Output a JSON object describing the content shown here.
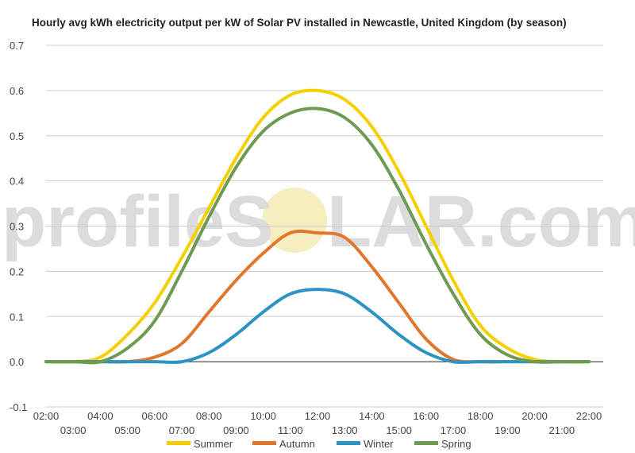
{
  "watermark": {
    "text_left": "profileS",
    "text_right": "LAR.com",
    "sun_color": "#f6eebf"
  },
  "chart_data": {
    "type": "line",
    "title": "Hourly avg kWh electricity output per kW of Solar PV installed in Newcastle, United Kingdom (by season)",
    "xlabel": "",
    "ylabel": "",
    "ylim": [
      -0.1,
      0.7
    ],
    "yticks": [
      "-0.1",
      "0.0",
      "0.1",
      "0.2",
      "0.3",
      "0.4",
      "0.5",
      "0.6",
      "0.7"
    ],
    "grid": true,
    "legend_position": "bottom",
    "x": [
      "02:00",
      "03:00",
      "04:00",
      "05:00",
      "06:00",
      "07:00",
      "08:00",
      "09:00",
      "10:00",
      "11:00",
      "12:00",
      "13:00",
      "14:00",
      "15:00",
      "16:00",
      "17:00",
      "18:00",
      "19:00",
      "20:00",
      "21:00",
      "22:00"
    ],
    "series": [
      {
        "name": "Summer",
        "color": "#f5d000",
        "values": [
          0,
          0,
          0.01,
          0.06,
          0.13,
          0.23,
          0.34,
          0.45,
          0.54,
          0.59,
          0.6,
          0.58,
          0.52,
          0.42,
          0.3,
          0.18,
          0.08,
          0.03,
          0.005,
          0,
          0
        ]
      },
      {
        "name": "Autumn",
        "color": "#e2762c",
        "values": [
          0,
          0,
          0,
          0,
          0.01,
          0.04,
          0.11,
          0.18,
          0.24,
          0.285,
          0.285,
          0.275,
          0.21,
          0.13,
          0.05,
          0.005,
          0,
          0,
          0,
          0,
          0
        ]
      },
      {
        "name": "Winter",
        "color": "#2b94c3",
        "values": [
          0,
          0,
          0,
          0,
          0,
          0,
          0.02,
          0.06,
          0.11,
          0.15,
          0.16,
          0.15,
          0.11,
          0.06,
          0.02,
          0,
          0,
          0,
          0,
          0,
          0
        ]
      },
      {
        "name": "Spring",
        "color": "#6d9b52",
        "values": [
          0,
          0,
          0,
          0.03,
          0.09,
          0.2,
          0.32,
          0.43,
          0.51,
          0.55,
          0.56,
          0.54,
          0.48,
          0.38,
          0.26,
          0.15,
          0.06,
          0.015,
          0,
          0,
          0
        ]
      }
    ]
  }
}
